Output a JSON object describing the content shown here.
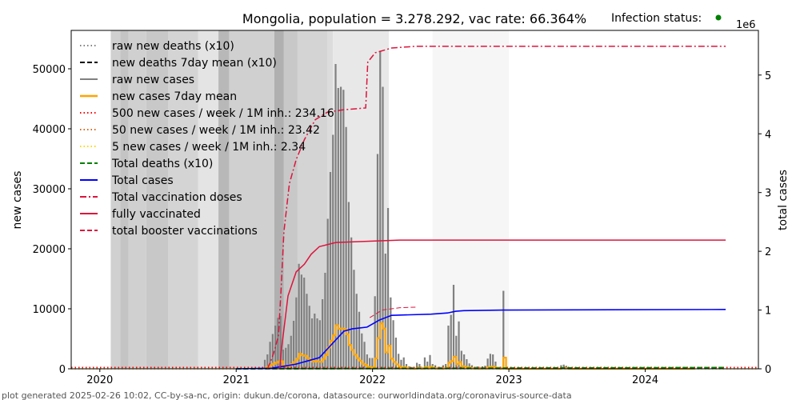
{
  "chart_data": {
    "type": "bar+line",
    "title": "Mongolia, population = 3.278.292, vac rate: 66.364%",
    "infection_status_label": "Infection status:",
    "infection_status_color": "#008000",
    "ylabel_left": "new cases",
    "ylabel_right": "total cases",
    "right_axis_multiplier": "1e6",
    "xlim": [
      2019.79,
      2024.83
    ],
    "ylim_left": [
      0,
      56400
    ],
    "ylim_right": [
      0,
      5.76
    ],
    "x_ticks": [
      "2020",
      "2021",
      "2022",
      "2023",
      "2024"
    ],
    "y_ticks_left": [
      0,
      10000,
      20000,
      30000,
      40000,
      50000
    ],
    "y_ticks_right": [
      0,
      1,
      2,
      3,
      4,
      5
    ],
    "legend_position": "top-left",
    "legend": [
      {
        "label": "raw new deaths (x10)",
        "color": "#808080",
        "style": "dotted"
      },
      {
        "label": "new deaths 7day mean (x10)",
        "color": "#000000",
        "style": "dashed"
      },
      {
        "label": "raw new cases",
        "color": "#808080",
        "style": "solid"
      },
      {
        "label": "new cases 7day mean",
        "color": "#ffa500",
        "style": "solid-thick"
      },
      {
        "label": "500 new cases / week / 1M inh.: 234.16",
        "color": "#ff0000",
        "style": "dotted"
      },
      {
        "label": "50 new cases / week / 1M inh.: 23.42",
        "color": "#d2691e",
        "style": "dotted"
      },
      {
        "label": "5 new cases / week / 1M inh.: 2.34",
        "color": "#ffd700",
        "style": "dotted"
      },
      {
        "label": "Total deaths (x10)",
        "color": "#008000",
        "style": "dashed"
      },
      {
        "label": "Total cases",
        "color": "#0000ff",
        "style": "solid"
      },
      {
        "label": "Total vaccination doses",
        "color": "#dc143c",
        "style": "dashdot"
      },
      {
        "label": "fully vaccinated",
        "color": "#dc143c",
        "style": "solid"
      },
      {
        "label": "total booster vaccinations",
        "color": "#dc143c",
        "style": "dashed"
      }
    ],
    "thresholds": [
      234.16,
      23.42,
      2.34
    ],
    "background_bands": [
      [
        2020.08,
        2020.15,
        "#d0d0d0"
      ],
      [
        2020.15,
        2020.21,
        "#c4c4c4"
      ],
      [
        2020.21,
        2020.34,
        "#d0d0d0"
      ],
      [
        2020.34,
        2020.5,
        "#c8c8c8"
      ],
      [
        2020.5,
        2020.72,
        "#d4d4d4"
      ],
      [
        2020.72,
        2020.87,
        "#e4e4e4"
      ],
      [
        2020.87,
        2020.95,
        "#b8b8b8"
      ],
      [
        2020.95,
        2021.28,
        "#d0d0d0"
      ],
      [
        2021.28,
        2021.35,
        "#b0b0b0"
      ],
      [
        2021.35,
        2021.45,
        "#c8c8c8"
      ],
      [
        2021.45,
        2021.67,
        "#d4d4d4"
      ],
      [
        2021.67,
        2021.71,
        "#dcdcdc"
      ],
      [
        2021.71,
        2022.12,
        "#e8e8e8"
      ],
      [
        2022.44,
        2023.0,
        "#f6f6f6"
      ]
    ],
    "weekly_new_cases": {
      "start_year": 2021.21,
      "step_weeks": 1,
      "values": [
        1500,
        2400,
        4500,
        5800,
        7200,
        8500,
        8800,
        3200,
        3500,
        4100,
        5500,
        8000,
        11900,
        17500,
        15700,
        15200,
        12500,
        10500,
        8400,
        9200,
        8400,
        8100,
        11600,
        16000,
        25000,
        32800,
        39000,
        50800,
        46800,
        47000,
        46500,
        40300,
        27800,
        21900,
        16500,
        12500,
        9500,
        5900,
        4500,
        2400,
        1800,
        1800,
        12100,
        35800,
        53000,
        47000,
        19200,
        26800,
        11900,
        8100,
        5200,
        2500,
        1500,
        1900,
        800,
        400,
        300,
        300,
        1000,
        800,
        300,
        1900,
        1200,
        2300,
        800,
        600,
        300,
        300,
        600,
        800,
        7200,
        9000,
        14000,
        5500,
        7900,
        3000,
        2400,
        1600,
        900,
        600,
        300,
        400,
        300,
        400,
        500,
        1700,
        2500,
        2400,
        1200,
        300,
        300,
        13000,
        100,
        100,
        100,
        100,
        100,
        100,
        100,
        100,
        100,
        100,
        100,
        100,
        100,
        100,
        100,
        100,
        100,
        100,
        100,
        100,
        100,
        600,
        700,
        500,
        100,
        100,
        100,
        100,
        100,
        100,
        100,
        100,
        100,
        100,
        100,
        100,
        100,
        100,
        100,
        100,
        100,
        100,
        100,
        100,
        100,
        100,
        100,
        100,
        100,
        100,
        100,
        100,
        100,
        100,
        100,
        100,
        100,
        100,
        100,
        100,
        100,
        100,
        100,
        100,
        100,
        100,
        100,
        100,
        100,
        100,
        100,
        100
      ]
    },
    "total_cases_millions": [
      [
        2021.0,
        0
      ],
      [
        2021.26,
        0.01
      ],
      [
        2021.44,
        0.08
      ],
      [
        2021.61,
        0.19
      ],
      [
        2021.73,
        0.49
      ],
      [
        2021.79,
        0.64
      ],
      [
        2021.85,
        0.68
      ],
      [
        2021.96,
        0.71
      ],
      [
        2022.05,
        0.83
      ],
      [
        2022.14,
        0.91
      ],
      [
        2022.43,
        0.93
      ],
      [
        2022.55,
        0.95
      ],
      [
        2022.61,
        0.98
      ],
      [
        2022.67,
        0.99
      ],
      [
        2022.96,
        1.0
      ],
      [
        2024.59,
        1.01
      ]
    ],
    "total_vaccination_doses_millions": [
      [
        2021.23,
        0
      ],
      [
        2021.27,
        0.23
      ],
      [
        2021.31,
        0.56
      ],
      [
        2021.33,
        1.38
      ],
      [
        2021.35,
        2.33
      ],
      [
        2021.39,
        3.15
      ],
      [
        2021.44,
        3.56
      ],
      [
        2021.5,
        3.9
      ],
      [
        2021.58,
        4.24
      ],
      [
        2021.67,
        4.37
      ],
      [
        2021.79,
        4.41
      ],
      [
        2021.95,
        4.44
      ],
      [
        2021.965,
        5.22
      ],
      [
        2022.02,
        5.38
      ],
      [
        2022.14,
        5.46
      ],
      [
        2022.32,
        5.49
      ],
      [
        2024.59,
        5.49
      ]
    ],
    "fully_vaccinated_millions": [
      [
        2021.32,
        0
      ],
      [
        2021.33,
        0.29
      ],
      [
        2021.38,
        1.24
      ],
      [
        2021.44,
        1.65
      ],
      [
        2021.5,
        1.78
      ],
      [
        2021.55,
        1.95
      ],
      [
        2021.61,
        2.08
      ],
      [
        2021.73,
        2.15
      ],
      [
        2021.96,
        2.17
      ],
      [
        2022.2,
        2.19
      ],
      [
        2024.59,
        2.19
      ]
    ],
    "booster_vaccinations_millions": [
      [
        2021.98,
        0.87
      ],
      [
        2022.07,
        1.0
      ],
      [
        2022.2,
        1.04
      ],
      [
        2022.33,
        1.05
      ]
    ],
    "total_deaths_x10_millions": [
      [
        2021.0,
        0
      ],
      [
        2024.59,
        0.02
      ]
    ],
    "footer": "plot generated 2025-02-26 10:02, CC-by-sa-nc, origin: dukun.de/corona, datasource: ourworldindata.org/coronavirus-source-data"
  }
}
